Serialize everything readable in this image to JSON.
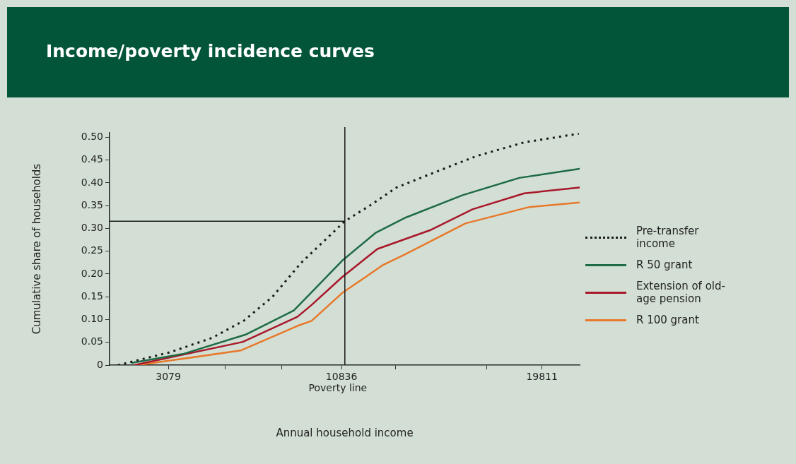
{
  "chart_data": {
    "type": "line",
    "title": "Income/poverty incidence curves",
    "xlabel": "Annual household income",
    "ylabel": "Cumulative share of households",
    "xlim": [
      450,
      21500
    ],
    "ylim": [
      0,
      0.51
    ],
    "xticks": [
      3079,
      {
        "value": 5619,
        "label": null
      },
      {
        "value": 8159,
        "label": null
      },
      10836,
      {
        "value": 13239,
        "label": null
      },
      {
        "value": 17335,
        "label": null
      },
      19811
    ],
    "yticks": [
      0,
      {
        "value": 0.05,
        "label": "0.05"
      },
      {
        "value": 0.1,
        "label": "0.10"
      },
      {
        "value": 0.15,
        "label": "0.15"
      },
      {
        "value": 0.2,
        "label": "0.20"
      },
      {
        "value": 0.25,
        "label": "0.25"
      },
      {
        "value": 0.3,
        "label": "0.30"
      },
      {
        "value": 0.35,
        "label": "0.35"
      },
      {
        "value": 0.4,
        "label": "0.40"
      },
      {
        "value": 0.45,
        "label": "0.45"
      },
      {
        "value": 0.5,
        "label": "0.50"
      }
    ],
    "ref_lines": [
      {
        "axis": "x",
        "value": 10985,
        "label": "Poverty line",
        "color": "#1a1a1a"
      },
      {
        "axis": "y",
        "value": 0.316,
        "color": "#1a1a1a"
      }
    ],
    "legend": "right",
    "marker": "none",
    "grid": false,
    "series": [
      {
        "name": "Pre-transfer income",
        "color": "#1a1a1a",
        "line_style": "dotted",
        "x": [
          824,
          3143,
          5048,
          6476,
          7746,
          9016,
          10985,
          12128,
          13303,
          14795,
          16890,
          19018,
          21462
        ],
        "values": [
          0,
          0.028,
          0.06,
          0.098,
          0.15,
          0.224,
          0.316,
          0.351,
          0.39,
          0.419,
          0.459,
          0.489,
          0.508
        ]
      },
      {
        "name": "R 50 grant",
        "color": "#1e6b45",
        "x": [
          1460,
          3777,
          6540,
          8699,
          9493,
          10858,
          12350,
          13715,
          16255,
          18795,
          21494
        ],
        "values": [
          0.005,
          0.025,
          0.067,
          0.12,
          0.16,
          0.229,
          0.29,
          0.324,
          0.373,
          0.411,
          0.431
        ]
      },
      {
        "name": "Extension of old-age pension",
        "color": "#a8182a",
        "x": [
          1555,
          6413,
          8858,
          9493,
          10858,
          12445,
          14795,
          16700,
          19018,
          21494
        ],
        "values": [
          0,
          0.051,
          0.106,
          0.132,
          0.193,
          0.255,
          0.296,
          0.342,
          0.377,
          0.39
        ]
      },
      {
        "name": "R 100 grant",
        "color": "#e8782a",
        "x": [
          1714,
          6317,
          8858,
          9493,
          10858,
          12667,
          13715,
          16382,
          19240,
          21494
        ],
        "values": [
          0,
          0.032,
          0.086,
          0.097,
          0.158,
          0.219,
          0.244,
          0.311,
          0.347,
          0.357
        ]
      }
    ]
  }
}
